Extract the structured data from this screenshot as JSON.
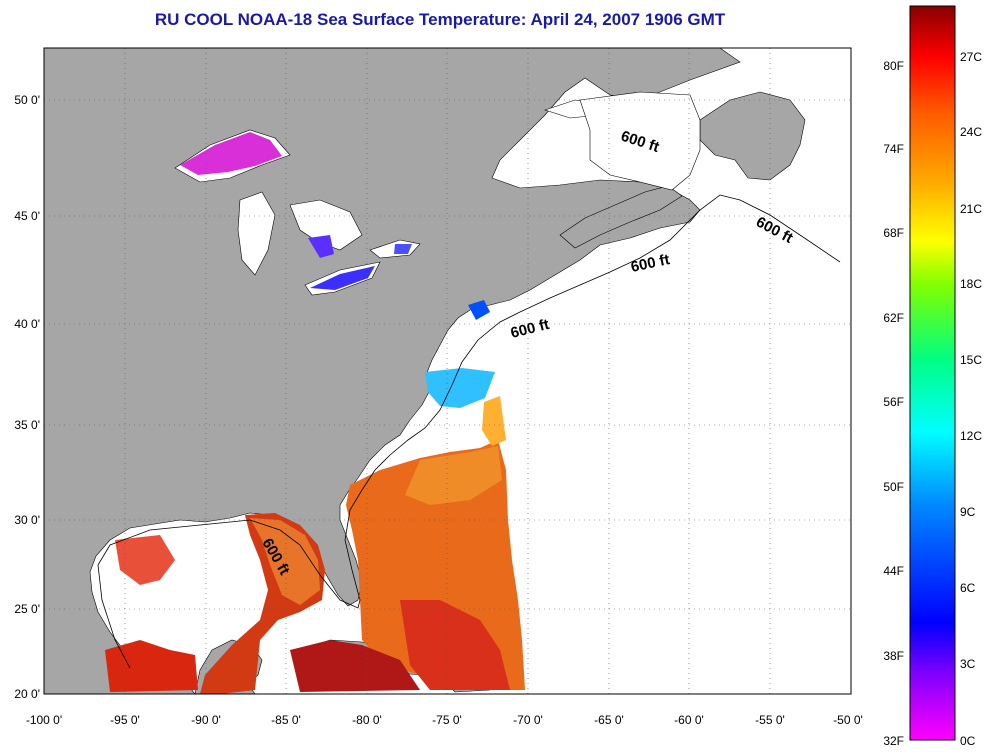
{
  "title": "RU COOL  NOAA-18  Sea Surface Temperature:  April 24, 2007 1906 GMT",
  "map": {
    "lat_labels": [
      "50 0'",
      "45 0'",
      "40 0'",
      "35 0'",
      "30 0'",
      "25 0'",
      "20 0'"
    ],
    "lon_labels": [
      "-100 0'",
      "-95 0'",
      "-90 0'",
      "-85 0'",
      "-80 0'",
      "-75 0'",
      "-70 0'",
      "-65 0'",
      "-60 0'",
      "-55 0'",
      "-50 0'"
    ],
    "depth_labels": [
      "600 ft",
      "600 ft",
      "600 ft",
      "600 ft",
      "600 ft"
    ],
    "colors": {
      "land": "#a6a6a6",
      "ocean": "#ffffff",
      "grid": "#555555"
    }
  },
  "colorbar": {
    "f_labels": [
      "80F",
      "74F",
      "68F",
      "62F",
      "56F",
      "50F",
      "44F",
      "38F",
      "32F"
    ],
    "c_labels": [
      "27C",
      "24C",
      "21C",
      "18C",
      "15C",
      "12C",
      "9C",
      "6C",
      "3C",
      "0C"
    ],
    "stops": [
      "#ff00ff",
      "#8000ff",
      "#0000ff",
      "#0088ff",
      "#00ffff",
      "#00ff80",
      "#80ff00",
      "#ffff00",
      "#ffaa00",
      "#ff5500",
      "#ff0000",
      "#880000"
    ]
  }
}
